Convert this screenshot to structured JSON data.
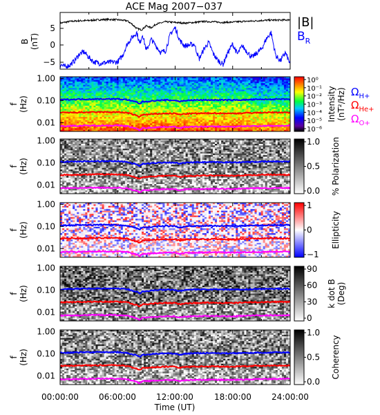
{
  "chart_data": {
    "title": "ACE Mag 2007−037",
    "type": "line",
    "x_axis": {
      "label": "Time (UT)",
      "range_hours": [
        0,
        24
      ],
      "ticks": [
        "00:00:00",
        "06:00:00",
        "12:00:00",
        "18:00:00",
        "24:00:00"
      ]
    },
    "panels": [
      {
        "id": "b-field",
        "type": "line",
        "ylabel": "B",
        "yunit": "(nT)",
        "ylim": [
          -7,
          10
        ],
        "yticks": [
          "5",
          "0",
          "−5"
        ],
        "legend": [
          "|B|",
          "B"
        ],
        "legend_sub": "R",
        "colors": [
          "#000000",
          "#0000ff"
        ],
        "series": [
          {
            "name": "|B|",
            "x": [
              0,
              1,
              2,
              3,
              4,
              5,
              6,
              7,
              7.5,
              8,
              8.5,
              9,
              9.5,
              10,
              11,
              12,
              13,
              14,
              15,
              16,
              17,
              18,
              19,
              20,
              21,
              22,
              23,
              24
            ],
            "y": [
              6.8,
              7.3,
              7.5,
              7.6,
              7.8,
              7.9,
              7.8,
              7.5,
              6.5,
              5.2,
              4.8,
              6.0,
              5.4,
              6.5,
              7.2,
              7.0,
              6.8,
              7.0,
              7.3,
              7.2,
              7.0,
              7.1,
              7.3,
              7.4,
              7.6,
              7.7,
              7.7,
              7.8
            ]
          },
          {
            "name": "B_R",
            "x": [
              0,
              0.5,
              1,
              1.5,
              2,
              2.5,
              3,
              3.5,
              4,
              5,
              6,
              6.5,
              7,
              7.5,
              8,
              8.3,
              8.6,
              9,
              9.5,
              10,
              10.5,
              11,
              11.5,
              12,
              12.5,
              13,
              14,
              14.5,
              15,
              15.5,
              16,
              16.5,
              17,
              17.5,
              18,
              18.5,
              19,
              20,
              21,
              21.5,
              22,
              22.5,
              23,
              23.5,
              24
            ],
            "y": [
              -5.5,
              -6.3,
              -5.8,
              -4.5,
              -2.5,
              -1.8,
              -3.5,
              -4.8,
              -5.2,
              -5.0,
              -4.8,
              -3.0,
              0.5,
              2.5,
              4.0,
              0.5,
              3.5,
              -1.5,
              2.0,
              0.0,
              -2.0,
              -1.5,
              3.5,
              5.5,
              1.5,
              0.0,
              0.5,
              -4.0,
              -1.0,
              1.0,
              -2.5,
              -4.5,
              -5.5,
              -2.0,
              0.5,
              -2.5,
              0.0,
              -3.5,
              -1.0,
              2.0,
              4.0,
              -3.0,
              -4.5,
              -2.0,
              -5.5
            ]
          }
        ]
      },
      {
        "id": "intensity",
        "type": "heatmap",
        "ylabel": "f",
        "yunit": "(Hz)",
        "ylim_log": [
          0.004,
          1.2
        ],
        "yticks": [
          "1.00",
          "0.10",
          "0.01"
        ],
        "colorbar": {
          "label": "Intensity",
          "unit": "(nT²/Hz)",
          "ticks": [
            "10⁰",
            "10⁻¹",
            "10⁻²",
            "10⁻³",
            "10⁻⁴",
            "10⁻⁵",
            "10⁻⁶"
          ]
        },
        "scheme": "rainbow",
        "legend": [
          "Ω",
          "Ω",
          "Ω"
        ],
        "legend_sub": [
          "H+",
          "He+",
          "O+"
        ]
      },
      {
        "id": "polarization",
        "type": "heatmap",
        "ylabel": "f",
        "yunit": "(Hz)",
        "yticks": [
          "1.00",
          "0.10",
          "0.01"
        ],
        "colorbar": {
          "label": "% Polarization",
          "ticks": [
            "1.0",
            "0.5",
            "0.0"
          ]
        },
        "scheme": "gray"
      },
      {
        "id": "ellipticity",
        "type": "heatmap",
        "ylabel": "f",
        "yunit": "(Hz)",
        "yticks": [
          "1.00",
          "0.10",
          "0.01"
        ],
        "colorbar": {
          "label": "Ellipticity",
          "ticks": [
            "1",
            "0",
            "−1"
          ]
        },
        "scheme": "bwr"
      },
      {
        "id": "kdotb",
        "type": "heatmap",
        "ylabel": "f",
        "yunit": "(Hz)",
        "yticks": [
          "1.00",
          "0.10",
          "0.01"
        ],
        "colorbar": {
          "label": "k dot B",
          "unit": "(Deg)",
          "ticks": [
            "90",
            "60",
            "30",
            "0"
          ]
        },
        "scheme": "gray"
      },
      {
        "id": "coherency",
        "type": "heatmap",
        "ylabel": "f",
        "yunit": "(Hz)",
        "yticks": [
          "1.00",
          "0.10",
          "0.01"
        ],
        "colorbar": {
          "label": "Coherency",
          "ticks": [
            "1.0",
            "0.5",
            "0.0"
          ]
        },
        "scheme": "gray"
      }
    ],
    "gyrofrequency_lines": [
      {
        "name": "H+",
        "color": "#0000ff",
        "x": [
          0,
          2,
          4,
          6,
          7,
          7.5,
          8,
          8.3,
          8.6,
          9,
          10,
          11,
          12,
          12.5,
          13,
          14,
          16,
          18,
          20,
          22,
          24
        ],
        "y": [
          0.11,
          0.115,
          0.118,
          0.118,
          0.11,
          0.095,
          0.085,
          0.07,
          0.09,
          0.09,
          0.1,
          0.105,
          0.102,
          0.09,
          0.1,
          0.105,
          0.107,
          0.105,
          0.11,
          0.115,
          0.115
        ]
      },
      {
        "name": "He+",
        "color": "#ff0000",
        "x": [
          0,
          2,
          4,
          6,
          7,
          7.5,
          8,
          8.3,
          8.6,
          9,
          10,
          11,
          12,
          12.5,
          13,
          14,
          16,
          18,
          20,
          22,
          24
        ],
        "y": [
          0.028,
          0.029,
          0.03,
          0.03,
          0.028,
          0.024,
          0.021,
          0.018,
          0.023,
          0.023,
          0.025,
          0.026,
          0.026,
          0.023,
          0.025,
          0.026,
          0.027,
          0.026,
          0.028,
          0.029,
          0.029
        ]
      },
      {
        "name": "O+",
        "color": "#ff00ff",
        "x": [
          0,
          2,
          4,
          6,
          7,
          7.5,
          8,
          8.3,
          8.6,
          9,
          10,
          11,
          12,
          12.5,
          13,
          14,
          16,
          18,
          20,
          22,
          24
        ],
        "y": [
          0.007,
          0.0072,
          0.0074,
          0.0074,
          0.007,
          0.006,
          0.0053,
          0.0045,
          0.0057,
          0.0057,
          0.0062,
          0.0065,
          0.0064,
          0.0057,
          0.0063,
          0.0065,
          0.0067,
          0.0065,
          0.007,
          0.0072,
          0.0072
        ]
      }
    ]
  }
}
